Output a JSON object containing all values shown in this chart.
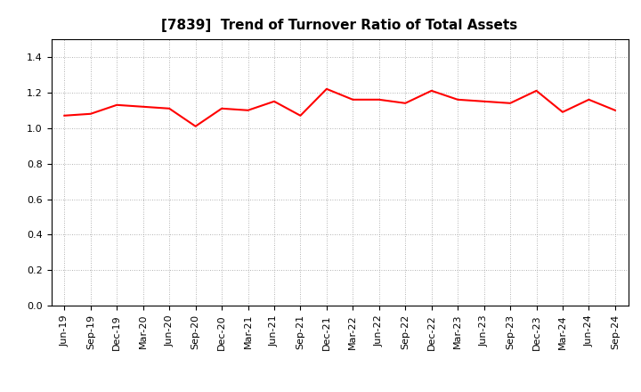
{
  "title": "[7839]  Trend of Turnover Ratio of Total Assets",
  "line_color": "#FF0000",
  "line_width": 1.5,
  "background_color": "#FFFFFF",
  "grid_color": "#999999",
  "ylim": [
    0.0,
    1.5
  ],
  "yticks": [
    0.0,
    0.2,
    0.4,
    0.6,
    0.8,
    1.0,
    1.2,
    1.4
  ],
  "labels": [
    "Jun-19",
    "Sep-19",
    "Dec-19",
    "Mar-20",
    "Jun-20",
    "Sep-20",
    "Dec-20",
    "Mar-21",
    "Jun-21",
    "Sep-21",
    "Dec-21",
    "Mar-22",
    "Jun-22",
    "Sep-22",
    "Dec-22",
    "Mar-23",
    "Jun-23",
    "Sep-23",
    "Dec-23",
    "Mar-24",
    "Jun-24",
    "Sep-24"
  ],
  "values": [
    1.07,
    1.08,
    1.13,
    1.12,
    1.11,
    1.01,
    1.11,
    1.1,
    1.15,
    1.07,
    1.22,
    1.16,
    1.16,
    1.14,
    1.21,
    1.16,
    1.15,
    1.14,
    1.21,
    1.09,
    1.16,
    1.1
  ],
  "title_fontsize": 11,
  "tick_fontsize": 8,
  "figsize": [
    7.2,
    4.4
  ],
  "dpi": 100
}
